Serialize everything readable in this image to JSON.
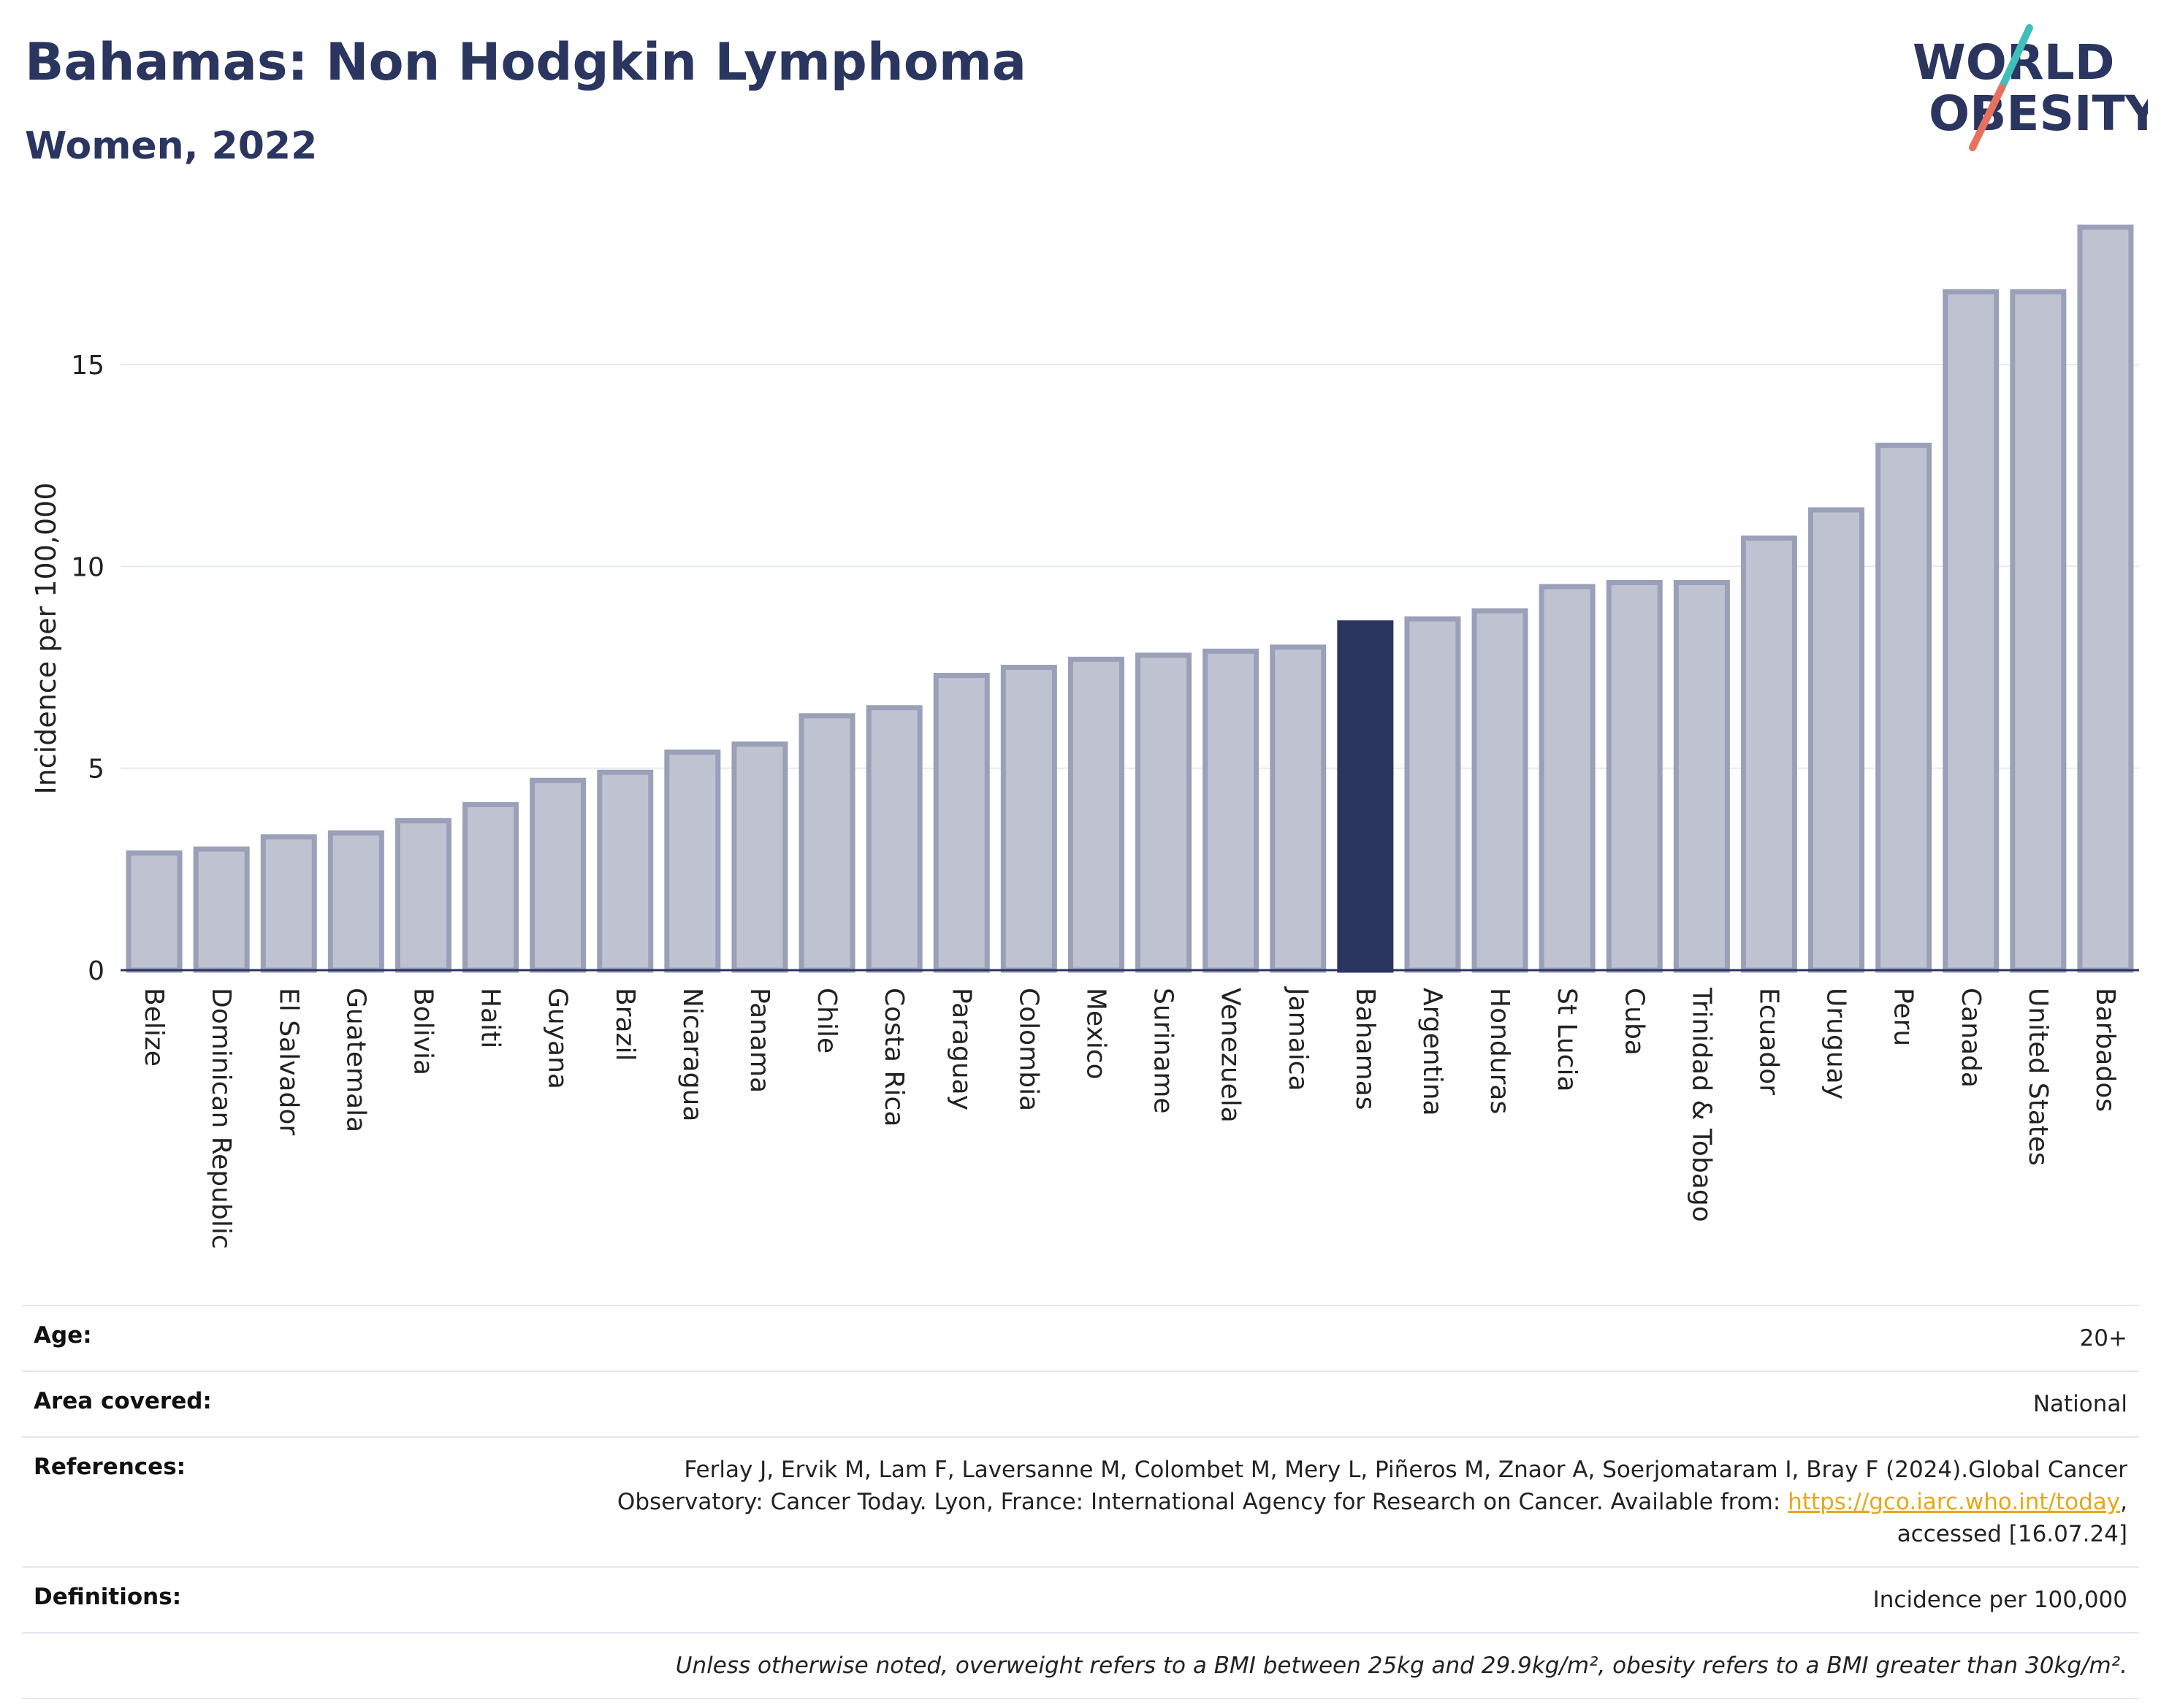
{
  "header": {
    "title": "Bahamas: Non Hodgkin Lymphoma",
    "subtitle": "Women, 2022"
  },
  "logo": {
    "line1": "WORLD",
    "line2": "OBESITY"
  },
  "colors": {
    "highlight": "#2a3560",
    "bar_fill": "#bfc3d1",
    "bar_stroke": "#9aa0b8",
    "grid": "#e6e8ef",
    "axis": "#2a3560",
    "logo_teal": "#3fbfb8",
    "logo_red": "#e8705e"
  },
  "chart_data": {
    "type": "bar",
    "title": "Bahamas: Non Hodgkin Lymphoma",
    "ylabel": "Incidence per 100,000",
    "xlabel": "",
    "ylim": [
      0,
      18.6
    ],
    "yticks": [
      0,
      5,
      10,
      15
    ],
    "grid": true,
    "highlight": "Bahamas",
    "categories": [
      "Belize",
      "Dominican Republic",
      "El Salvador",
      "Guatemala",
      "Bolivia",
      "Haiti",
      "Guyana",
      "Brazil",
      "Nicaragua",
      "Panama",
      "Chile",
      "Costa Rica",
      "Paraguay",
      "Colombia",
      "Mexico",
      "Suriname",
      "Venezuela",
      "Jamaica",
      "Bahamas",
      "Argentina",
      "Honduras",
      "St Lucia",
      "Cuba",
      "Trinidad & Tobago",
      "Ecuador",
      "Uruguay",
      "Peru",
      "Canada",
      "United States",
      "Barbados"
    ],
    "values": [
      2.9,
      3.0,
      3.3,
      3.4,
      3.7,
      4.1,
      4.7,
      4.9,
      5.4,
      5.6,
      6.3,
      6.5,
      7.3,
      7.5,
      7.7,
      7.8,
      7.9,
      8.0,
      8.6,
      8.7,
      8.9,
      9.5,
      9.6,
      9.6,
      10.7,
      11.4,
      13.0,
      16.8,
      16.8,
      18.4
    ]
  },
  "info": {
    "age_label": "Age:",
    "age_value": "20+",
    "area_label": "Area covered:",
    "area_value": "National",
    "references_label": "References:",
    "references_text_1": "Ferlay J, Ervik M, Lam F, Laversanne M, Colombet M, Mery L, Piñeros M, Znaor A, Soerjomataram I, Bray F (2024).Global Cancer Observatory: Cancer Today. Lyon, France: International Agency for Research on Cancer. Available from: ",
    "references_link": "https://gco.iarc.who.int/today",
    "references_text_2": ", accessed [16.07.24]",
    "definitions_label": "Definitions:",
    "definitions_value": "Incidence per 100,000",
    "note": "Unless otherwise noted, overweight refers to a BMI between 25kg and 29.9kg/m², obesity refers to a BMI greater than 30kg/m²."
  }
}
